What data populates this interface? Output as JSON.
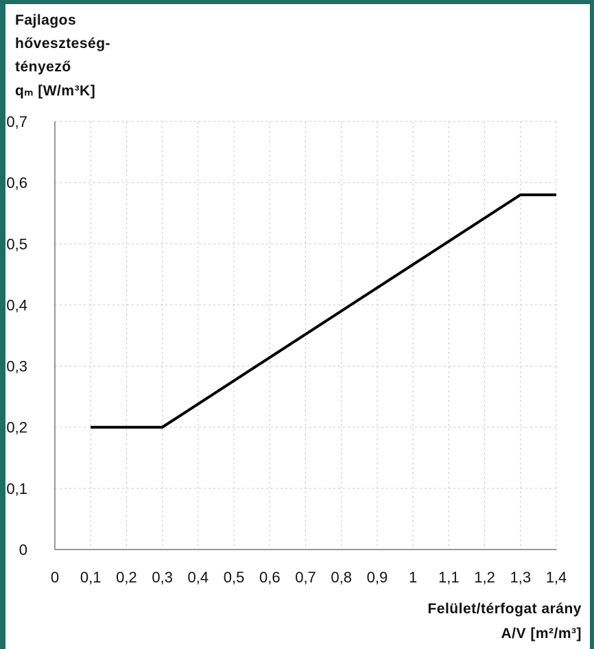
{
  "chart_data": {
    "type": "line",
    "ylabel_lines": [
      "Fajlagos",
      "hőveszteség-",
      "tényező",
      "qₘ [W/m³K]"
    ],
    "xlabel_lines": [
      "Felület/térfogat arány",
      "A/V [m²/m³]"
    ],
    "x_ticks": [
      "0",
      "0,1",
      "0,2",
      "0,3",
      "0,4",
      "0,5",
      "0,6",
      "0,7",
      "0,8",
      "0,9",
      "1",
      "1,1",
      "1,2",
      "1,3",
      "1,4"
    ],
    "y_ticks": [
      "0",
      "0,1",
      "0,2",
      "0,3",
      "0,4",
      "0,5",
      "0,6",
      "0,7"
    ],
    "xlim": [
      0,
      1.4
    ],
    "ylim": [
      0,
      0.7
    ],
    "grid": true,
    "series": [
      {
        "x": [
          0.1,
          0.3,
          1.3,
          1.4
        ],
        "y": [
          0.2,
          0.2,
          0.58,
          0.58
        ]
      }
    ]
  }
}
